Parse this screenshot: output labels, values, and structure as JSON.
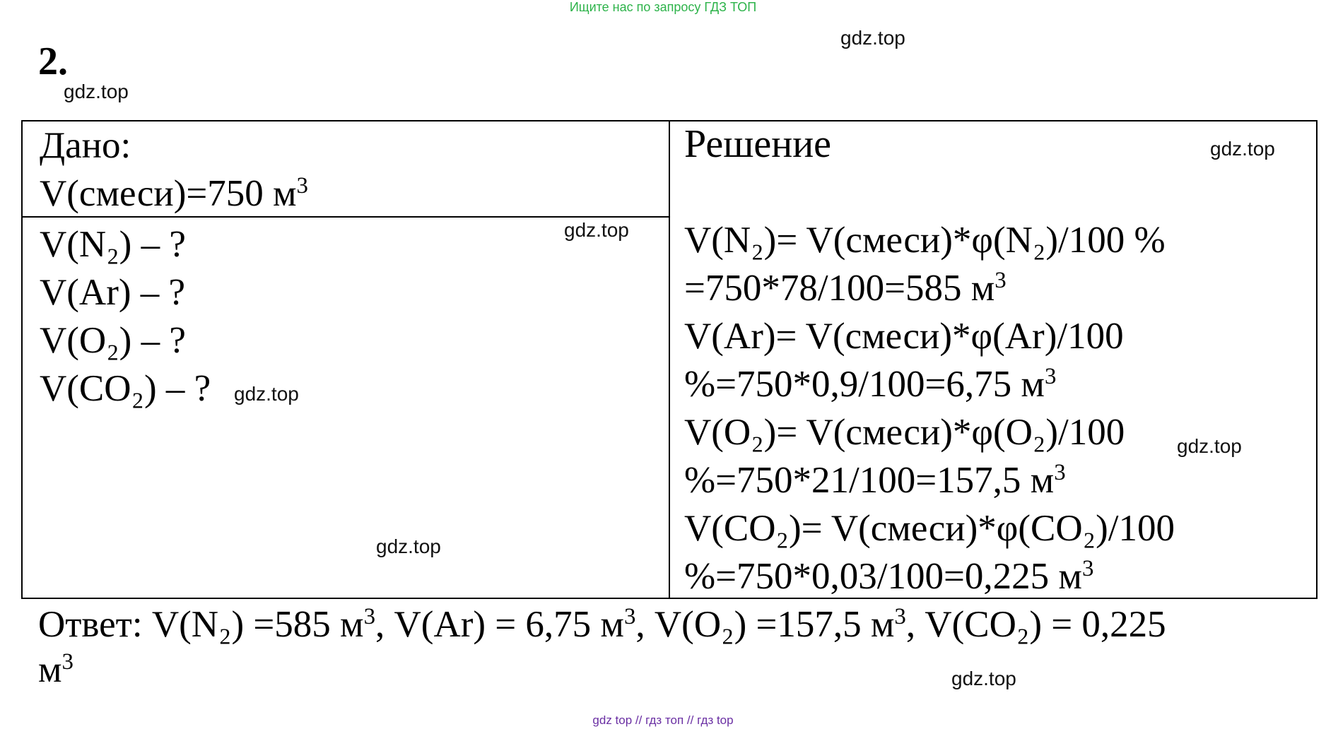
{
  "banner_top": "Ищите нас по запросу ГДЗ ТОП",
  "banner_bottom": "gdz top  //  гдз топ  //  гдз top",
  "watermark": "gdz.top",
  "problem_number": "2.",
  "given": {
    "heading": "Дано:",
    "mixture_prefix": "V(смеси)=750 м",
    "unit_power": "3"
  },
  "find": {
    "items": [
      "V(N₂) – ?",
      "V(Ar) – ?",
      "V(O₂) – ?",
      "V(CO₂) – ?"
    ]
  },
  "solution": {
    "heading": "Решение",
    "n2_formula": "V(N₂)= V(смеси)*φ(N₂)/100 %",
    "n2_calc": "=750*78/100=585 м",
    "ar_formula": "V(Ar)= V(смеси)*φ(Ar)/100",
    "ar_calc": "%=750*0,9/100=6,75 м",
    "o2_formula": "V(O₂)= V(смеси)*φ(O₂)/100",
    "o2_calc": "%=750*21/100=157,5 м",
    "co2_formula": "V(CO₂)= V(смеси)*φ(CO₂)/100",
    "co2_calc": "%=750*0,03/100=0,225 м",
    "power": "3"
  },
  "answer": {
    "label": "Ответ:",
    "n2": "V(N₂) =585 м",
    "ar": "V(Ar) = 6,75 м",
    "o2": "V(O₂) =157,5 м",
    "co2": "V(CO₂) = 0,225",
    "tail_unit": "м",
    "power": "3"
  }
}
